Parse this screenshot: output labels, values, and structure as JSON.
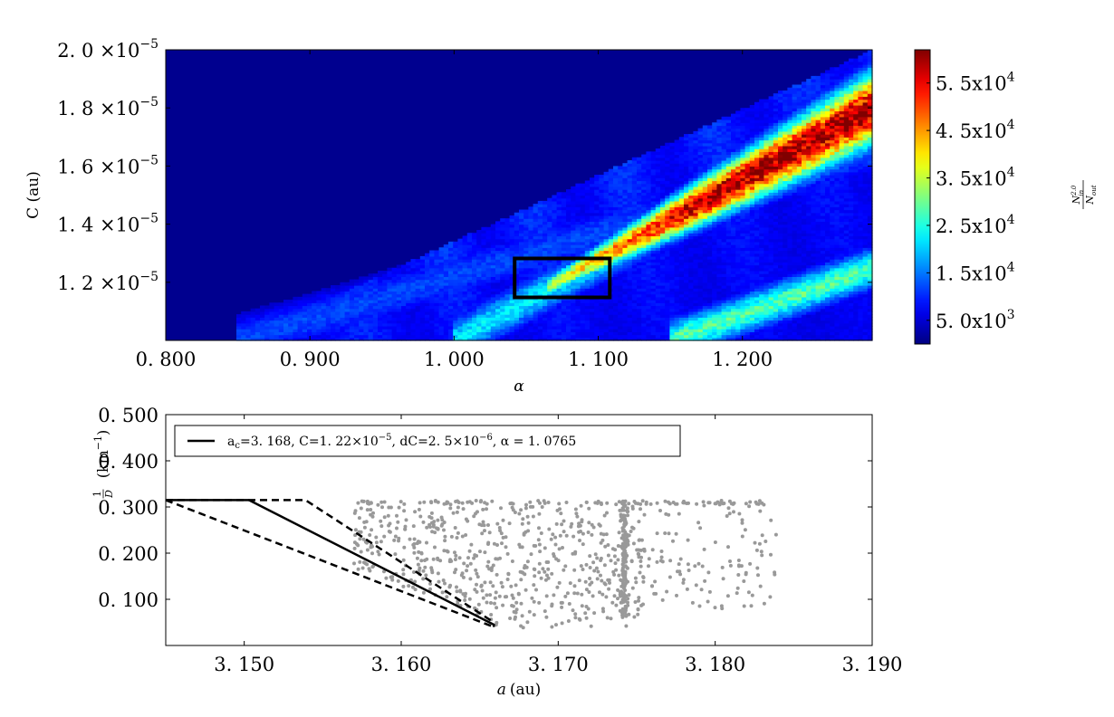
{
  "chart_data": [
    {
      "type": "heatmap",
      "xlabel": "α",
      "ylabel": "C (au)",
      "x_ticks": [
        {
          "value": 0.8,
          "label": "0. 800"
        },
        {
          "value": 0.9,
          "label": "0. 900"
        },
        {
          "value": 1.0,
          "label": "1. 000"
        },
        {
          "value": 1.1,
          "label": "1. 100"
        },
        {
          "value": 1.2,
          "label": "1. 200"
        }
      ],
      "y_ticks": [
        {
          "value": 1.2e-05,
          "mant": "1. 2",
          "times": "×10",
          "exp": "−5"
        },
        {
          "value": 1.4e-05,
          "mant": "1. 4",
          "times": "×10",
          "exp": "−5"
        },
        {
          "value": 1.6e-05,
          "mant": "1. 6",
          "times": "×10",
          "exp": "−5"
        },
        {
          "value": 1.8e-05,
          "mant": "1. 8",
          "times": "×10",
          "exp": "−5"
        },
        {
          "value": 2e-05,
          "mant": "2. 0",
          "times": "×10",
          "exp": "−5"
        }
      ],
      "xlim": [
        0.8,
        1.29
      ],
      "ylim": [
        1e-05,
        2e-05
      ],
      "colorbar": {
        "colormap": "jet",
        "range": [
          0,
          62000
        ],
        "ticks": [
          {
            "value": 5000,
            "label": "5. 0x10",
            "exp": "3"
          },
          {
            "value": 15000,
            "label": "1. 5x10",
            "exp": "4"
          },
          {
            "value": 25000,
            "label": "2. 5x10",
            "exp": "4"
          },
          {
            "value": 35000,
            "label": "3. 5x10",
            "exp": "4"
          },
          {
            "value": 45000,
            "label": "4. 5x10",
            "exp": "4"
          },
          {
            "value": 55000,
            "label": "5. 5x10",
            "exp": "4"
          }
        ],
        "label_num": "N",
        "label_num_sub": "in",
        "label_num_sup": "2.0",
        "label_den": "N",
        "label_den_sub": "out"
      },
      "highlight_box": {
        "alpha": [
          1.042,
          1.108
        ],
        "C": [
          1.148e-05,
          1.282e-05
        ],
        "color": "#000000"
      },
      "structure": {
        "peak_ridge": {
          "alpha": [
            1.07,
            1.29
          ],
          "C": [
            1.2e-05,
            1.8e-05
          ],
          "peak_value": 60000
        },
        "secondary_bands": [
          {
            "alpha": [
              0.85,
              1.29
            ],
            "C": [
              1e-05,
              1.65e-05
            ],
            "value": 12000
          },
          {
            "alpha": [
              1.0,
              1.29
            ],
            "C": [
              1e-05,
              1.78e-05
            ],
            "value": 22000
          },
          {
            "alpha": [
              1.15,
              1.29
            ],
            "C": [
              1e-05,
              1.25e-05
            ],
            "value": 28000
          }
        ]
      }
    },
    {
      "type": "scatter",
      "xlabel_var": "a",
      "xlabel_unit": "(au)",
      "ylabel_frac_num": "1",
      "ylabel_frac_den": "D",
      "ylabel_unit": "(km",
      "ylabel_unit_sup": "−1",
      "ylabel_unit_close": ")",
      "x_ticks": [
        {
          "value": 3.15,
          "label": "3. 150"
        },
        {
          "value": 3.16,
          "label": "3. 160"
        },
        {
          "value": 3.17,
          "label": "3. 170"
        },
        {
          "value": 3.18,
          "label": "3. 180"
        },
        {
          "value": 3.19,
          "label": "3. 190"
        }
      ],
      "y_ticks": [
        {
          "value": 0.1,
          "label": "0. 100"
        },
        {
          "value": 0.2,
          "label": "0. 200"
        },
        {
          "value": 0.3,
          "label": "0. 300"
        },
        {
          "value": 0.4,
          "label": "0. 400"
        },
        {
          "value": 0.5,
          "label": "0. 500"
        }
      ],
      "xlim": [
        3.145,
        3.19
      ],
      "ylim": [
        0.0,
        0.5
      ],
      "point_color": "#999999",
      "points_summary": {
        "count": 900,
        "x_range": [
          3.155,
          3.184
        ],
        "y_range": [
          0.035,
          0.315
        ],
        "dense_column_x": 3.1742
      },
      "lines": [
        {
          "style": "solid",
          "x": [
            3.145,
            3.1503,
            3.1659,
            3.1659
          ],
          "y": [
            0.315,
            0.315,
            0.045,
            0.04
          ]
        },
        {
          "style": "dashed",
          "x": [
            3.145,
            3.1539,
            3.1659
          ],
          "y": [
            0.315,
            0.315,
            0.05
          ]
        },
        {
          "style": "dashed",
          "x": [
            3.145,
            3.1659
          ],
          "y": [
            0.315,
            0.04
          ]
        }
      ],
      "legend": {
        "position": "top-left",
        "text_sub_a": "a",
        "text_sub_a_sub": "c",
        "text_a": "=3. 168,  C=1. 22×10",
        "text_a_sup": "−5",
        "text_b": ",  dC=2. 5×10",
        "text_b_sup": "−6",
        "text_c": ",  α = 1. 0765"
      }
    }
  ]
}
